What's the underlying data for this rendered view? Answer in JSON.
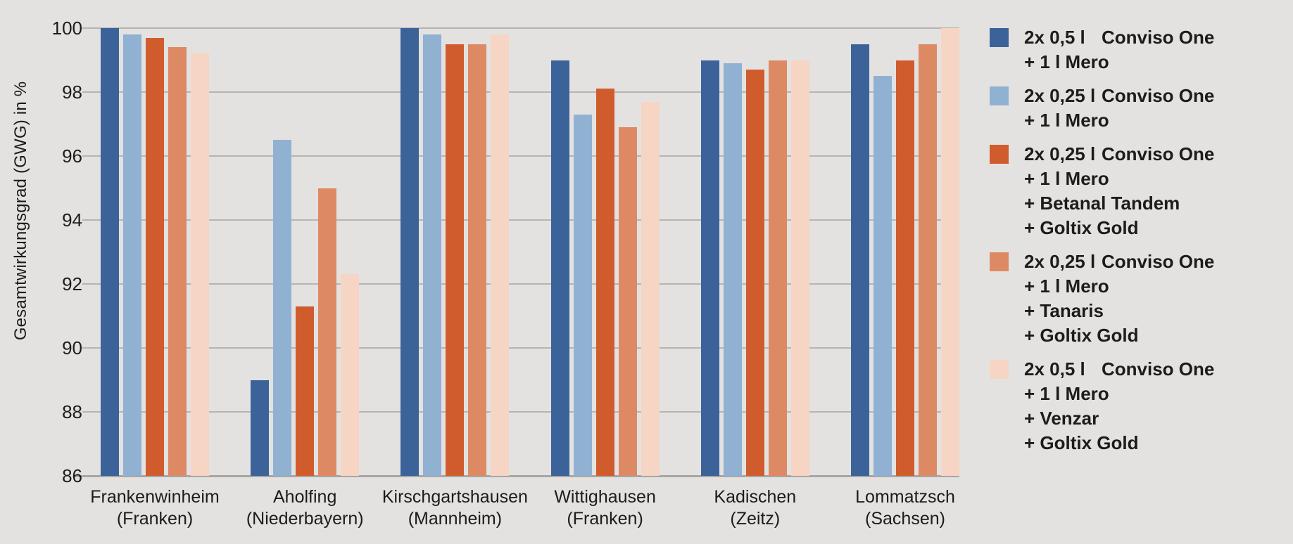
{
  "chart_data": {
    "type": "bar",
    "title": "",
    "ylabel": "Gesamtwirkungsgrad (GWG) in %",
    "xlabel": "",
    "ylim": [
      86,
      100
    ],
    "yticks": [
      100,
      98,
      96,
      94,
      92,
      90,
      88,
      86
    ],
    "grid": true,
    "legend_position": "right",
    "categories": [
      {
        "line1": "Frankenwinheim",
        "line2": "(Franken)"
      },
      {
        "line1": "Aholfing",
        "line2": "(Niederbayern)"
      },
      {
        "line1": "Kirschgartshausen",
        "line2": "(Mannheim)"
      },
      {
        "line1": "Wittighausen",
        "line2": "(Franken)"
      },
      {
        "line1": "Kadischen",
        "line2": "(Zeitz)"
      },
      {
        "line1": "Lommatzsch",
        "line2": "(Sachsen)"
      }
    ],
    "series": [
      {
        "name": "2x 0,5 l Conviso One + 1 l Mero",
        "color": "#3b639a",
        "legend": {
          "dose": "2x 0,5 l",
          "product": "Conviso One",
          "extra_lines": [
            "+ 1 l Mero"
          ]
        },
        "values": [
          100.0,
          89.0,
          100.0,
          99.0,
          99.0,
          99.5
        ]
      },
      {
        "name": "2x 0,25 l Conviso One + 1 l Mero",
        "color": "#91b1d3",
        "legend": {
          "dose": "2x 0,25 l",
          "product": "Conviso One",
          "extra_lines": [
            "+ 1 l Mero"
          ]
        },
        "values": [
          99.8,
          96.5,
          99.8,
          97.3,
          98.9,
          98.5
        ]
      },
      {
        "name": "2x 0,25 l Conviso One + 1 l Mero + Betanal Tandem + Goltix Gold",
        "color": "#d05c2d",
        "legend": {
          "dose": "2x 0,25 l",
          "product": "Conviso One",
          "extra_lines": [
            "+ 1 l Mero",
            "+ Betanal Tandem",
            "+ Goltix Gold"
          ]
        },
        "values": [
          99.7,
          91.3,
          99.5,
          98.1,
          98.7,
          99.0
        ]
      },
      {
        "name": "2x 0,25 l Conviso One + 1 l Mero + Tanaris + Goltix Gold",
        "color": "#dd8a64",
        "legend": {
          "dose": "2x 0,25 l",
          "product": "Conviso One",
          "extra_lines": [
            "+ 1 l Mero",
            "+ Tanaris",
            "+ Goltix Gold"
          ]
        },
        "values": [
          99.4,
          95.0,
          99.5,
          96.9,
          99.0,
          99.5
        ]
      },
      {
        "name": "2x 0,5 l Conviso One + 1 l Mero + Venzar + Goltix Gold",
        "color": "#f6d5c4",
        "legend": {
          "dose": "2x 0,5 l",
          "product": "Conviso One",
          "extra_lines": [
            "+ 1 l Mero",
            "+ Venzar",
            "+ Goltix Gold"
          ]
        },
        "values": [
          99.2,
          92.3,
          99.8,
          97.7,
          99.0,
          100.0
        ]
      }
    ]
  },
  "colors": {
    "background": "#e3e2e0",
    "gridline": "#b7b5b2",
    "baseline": "#a8a6a3",
    "text": "#1d1c1a"
  }
}
